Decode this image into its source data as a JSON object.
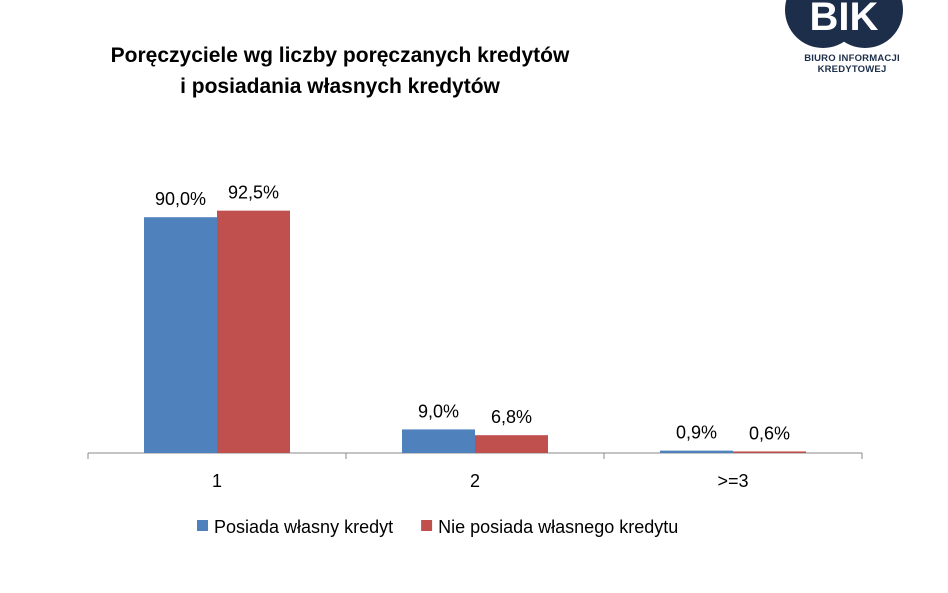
{
  "logo": {
    "text": "BIK",
    "subtitle": "BIURO INFORMACJI KREDYTOWEJ",
    "color": "#1c2e4a"
  },
  "chart_data": {
    "type": "bar",
    "title": "Poręczyciele wg liczby poręczanych kredytów i posiadania własnych kredytów",
    "title_lines": [
      "Poręczyciele wg liczby poręczanych kredytów",
      "i posiadania własnych kredytów"
    ],
    "categories": [
      "1",
      "2",
      ">=3"
    ],
    "series": [
      {
        "name": "Posiada własny kredyt",
        "values": [
          90.0,
          9.0,
          0.9
        ],
        "labels": [
          "90,0%",
          "9,0%",
          "0,9%"
        ],
        "color": "#4f81bd"
      },
      {
        "name": "Nie posiada własnego kredytu",
        "values": [
          92.5,
          6.8,
          0.6
        ],
        "labels": [
          "92,5%",
          "6,8%",
          "0,6%"
        ],
        "color": "#c0504d"
      }
    ],
    "ylim": [
      0,
      100
    ],
    "grid": false,
    "legend": "bottom",
    "xlabel": "",
    "ylabel": ""
  }
}
